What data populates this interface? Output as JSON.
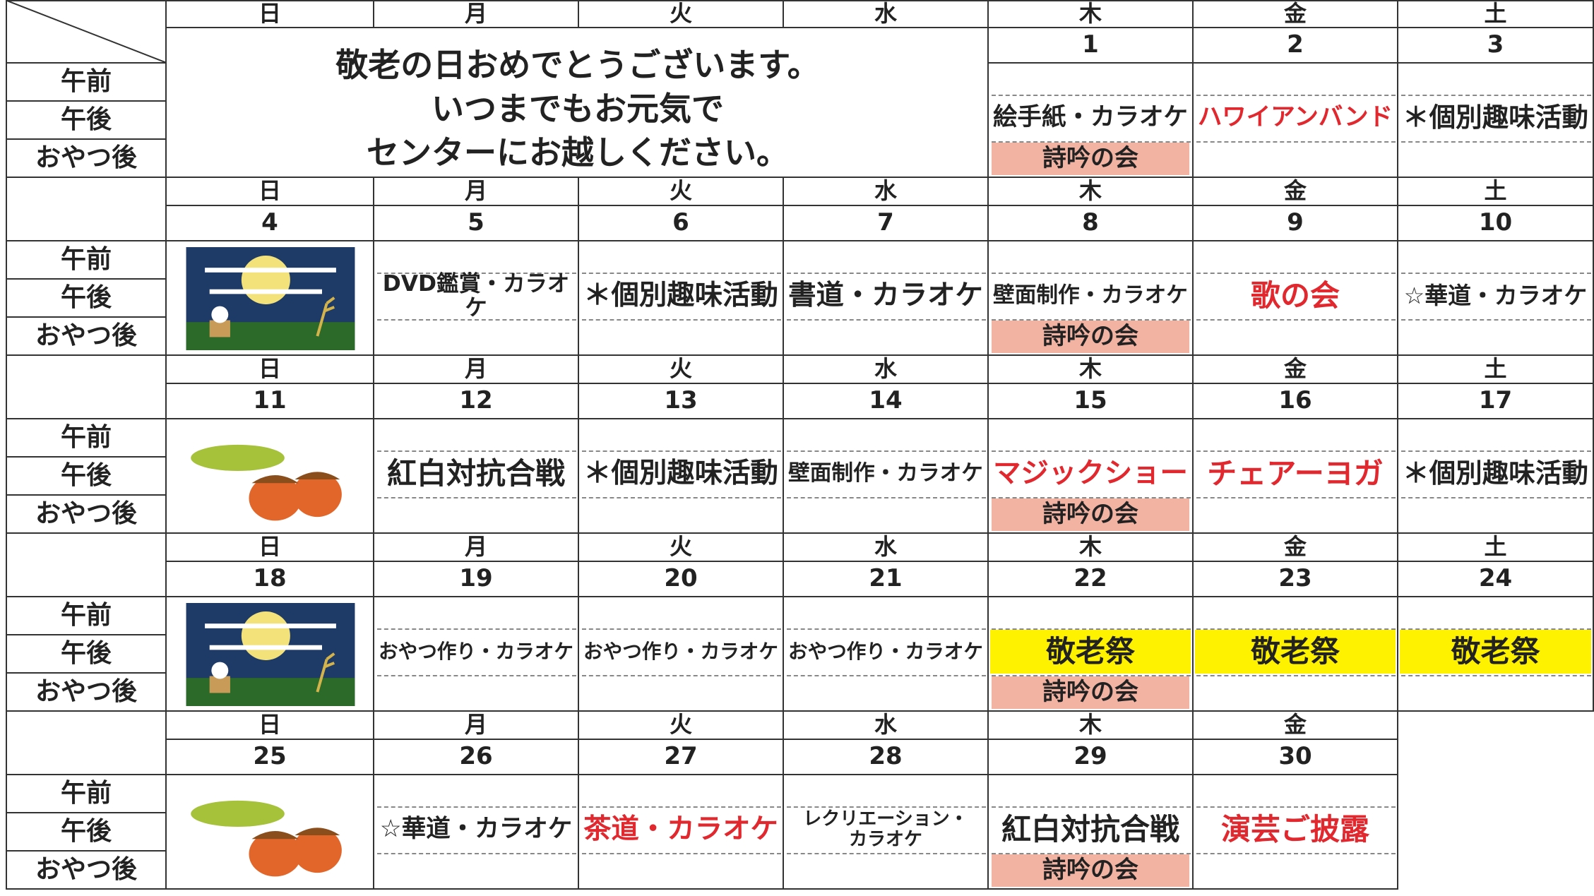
{
  "weekdays": [
    "日",
    "月",
    "火",
    "水",
    "木",
    "金",
    "土"
  ],
  "period_labels": [
    "午前",
    "午後",
    "おやつ後"
  ],
  "message": [
    "敬老の日おめでとうございます。",
    "いつまでもお元気で",
    "センターにお越しください。"
  ],
  "extra_highlight": "#f2b3a3",
  "weeks": [
    {
      "dates": [
        null,
        null,
        null,
        null,
        1,
        2,
        3
      ],
      "days": [
        null,
        null,
        null,
        null,
        {
          "activity": "絵手紙・カラオケ",
          "extra": "詩吟の会"
        },
        {
          "activity": "ハワイアンバンド",
          "color": "#e0282e"
        },
        {
          "activity": "＊個別趣味活動"
        }
      ]
    },
    {
      "dates": [
        4,
        5,
        6,
        7,
        8,
        9,
        10
      ],
      "days": [
        null,
        {
          "activity": "DVD鑑賞・カラオケ"
        },
        {
          "activity": "＊個別趣味活動"
        },
        {
          "activity": "書道・カラオケ"
        },
        {
          "activity": "壁面制作・カラオケ",
          "extra": "詩吟の会"
        },
        {
          "activity": "歌の会",
          "color": "#e0282e"
        },
        {
          "activity": "☆華道・カラオケ"
        }
      ]
    },
    {
      "dates": [
        11,
        12,
        13,
        14,
        15,
        16,
        17
      ],
      "days": [
        null,
        {
          "activity": "紅白対抗合戦"
        },
        {
          "activity": "＊個別趣味活動"
        },
        {
          "activity": "壁面制作・カラオケ"
        },
        {
          "activity": "マジックショー",
          "color": "#e0282e",
          "extra": "詩吟の会"
        },
        {
          "activity": "チェアーヨガ",
          "color": "#e0282e"
        },
        {
          "activity": "＊個別趣味活動"
        }
      ]
    },
    {
      "dates": [
        18,
        19,
        20,
        21,
        22,
        23,
        24
      ],
      "days": [
        null,
        {
          "activity": "おやつ作り・カラオケ"
        },
        {
          "activity": "おやつ作り・カラオケ"
        },
        {
          "activity": "おやつ作り・カラオケ"
        },
        {
          "activity": "敬老祭",
          "highlight": "#fff200",
          "extra": "詩吟の会"
        },
        {
          "activity": "敬老祭",
          "highlight": "#fff200"
        },
        {
          "activity": "敬老祭",
          "highlight": "#fff200"
        }
      ]
    },
    {
      "dates": [
        25,
        26,
        27,
        28,
        29,
        30
      ],
      "days": [
        null,
        {
          "activity": "☆華道・カラオケ"
        },
        {
          "activity": "茶道・カラオケ",
          "color": "#e0282e"
        },
        {
          "activity": "レクリエーション・\nカラオケ"
        },
        {
          "activity": "紅白対抗合戦",
          "extra": "詩吟の会"
        },
        {
          "activity": "演芸ご披露",
          "color": "#e0282e"
        }
      ]
    }
  ]
}
